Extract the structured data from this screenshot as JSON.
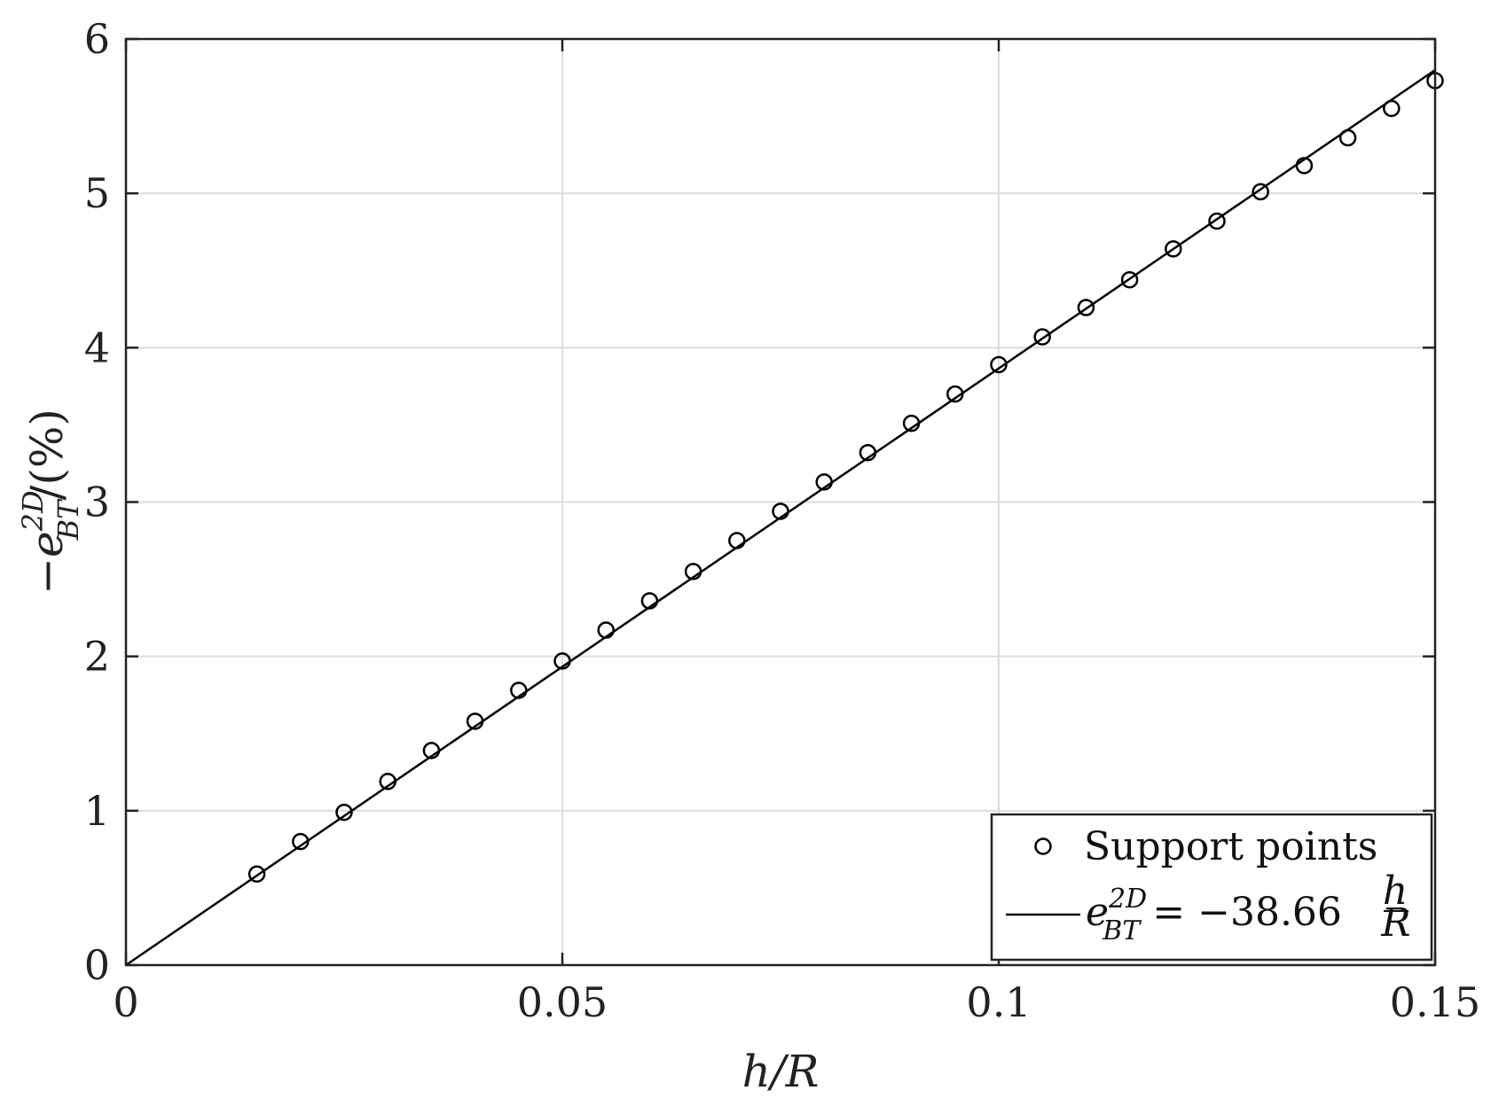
{
  "chart_data": {
    "type": "scatter",
    "xlabel": "h/R",
    "ylabel": "-e^{2D}_{BT}/(%)",
    "xlim": [
      0,
      0.15
    ],
    "ylim": [
      0,
      6
    ],
    "x_ticks": [
      0,
      0.05,
      0.1,
      0.15
    ],
    "x_tick_labels": [
      "0",
      "0.05",
      "0.1",
      "0.15"
    ],
    "y_ticks": [
      0,
      1,
      2,
      3,
      4,
      5,
      6
    ],
    "y_tick_labels": [
      "0",
      "1",
      "2",
      "3",
      "4",
      "5",
      "6"
    ],
    "grid": true,
    "legend_position": "bottom-right",
    "series": [
      {
        "name": "Support points",
        "type": "scatter",
        "marker": "circle-open",
        "color": "#000000",
        "x": [
          0.015,
          0.02,
          0.025,
          0.03,
          0.035,
          0.04,
          0.045,
          0.05,
          0.055,
          0.06,
          0.065,
          0.07,
          0.075,
          0.08,
          0.085,
          0.09,
          0.095,
          0.1,
          0.105,
          0.11,
          0.115,
          0.12,
          0.125,
          0.13,
          0.135,
          0.14,
          0.145,
          0.15
        ],
        "y": [
          0.59,
          0.8,
          0.99,
          1.19,
          1.39,
          1.58,
          1.78,
          1.97,
          2.17,
          2.36,
          2.55,
          2.75,
          2.94,
          3.13,
          3.32,
          3.51,
          3.7,
          3.89,
          4.07,
          4.26,
          4.44,
          4.64,
          4.82,
          5.01,
          5.18,
          5.36,
          5.55,
          5.73
        ]
      },
      {
        "name": "e^{2D}_{BT} = -38.66 h/R",
        "type": "line",
        "color": "#000000",
        "x": [
          0,
          0.15
        ],
        "y": [
          0,
          5.799
        ]
      }
    ]
  }
}
